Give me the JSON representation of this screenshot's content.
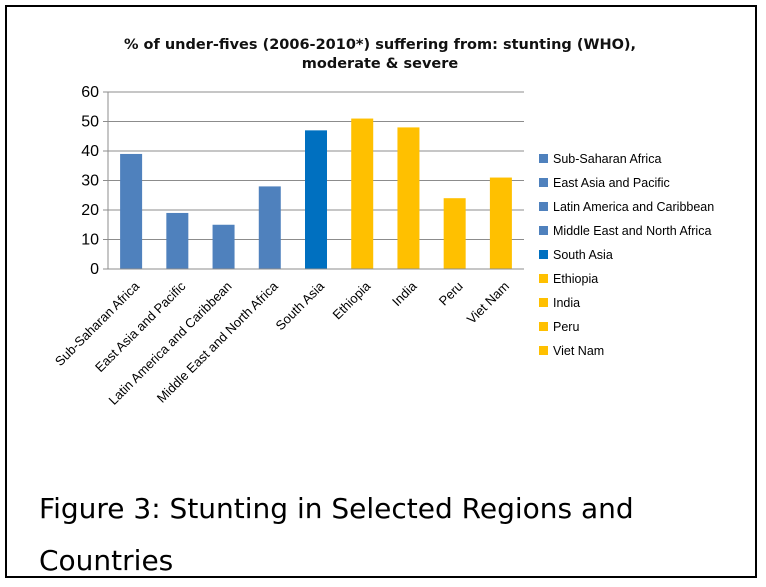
{
  "chart_data": {
    "type": "bar",
    "title": "% of under-fives (2006-2010*) suffering from: stunting (WHO), moderate & severe",
    "title_lines": [
      "% of under-fives (2006-2010*) suffering from: stunting (WHO),",
      "moderate & severe"
    ],
    "categories": [
      "Sub-Saharan Africa",
      "East Asia and Pacific",
      "Latin America and Caribbean",
      "Middle East and North Africa",
      "South Asia",
      "Ethiopia",
      "India",
      "Peru",
      "Viet Nam"
    ],
    "values": [
      39,
      19,
      15,
      28,
      47,
      51,
      48,
      24,
      31
    ],
    "colors": [
      "#4f81bd",
      "#4f81bd",
      "#4f81bd",
      "#4f81bd",
      "#0070c0",
      "#ffc000",
      "#ffc000",
      "#ffc000",
      "#ffc000"
    ],
    "yticks": [
      "0",
      "10",
      "20",
      "30",
      "40",
      "50",
      "60"
    ],
    "ylim": [
      0,
      60
    ],
    "xlabel": "",
    "ylabel": "",
    "grid": true,
    "legend_position": "right"
  },
  "caption": "Figure 3: Stunting in Selected Regions and Countries"
}
